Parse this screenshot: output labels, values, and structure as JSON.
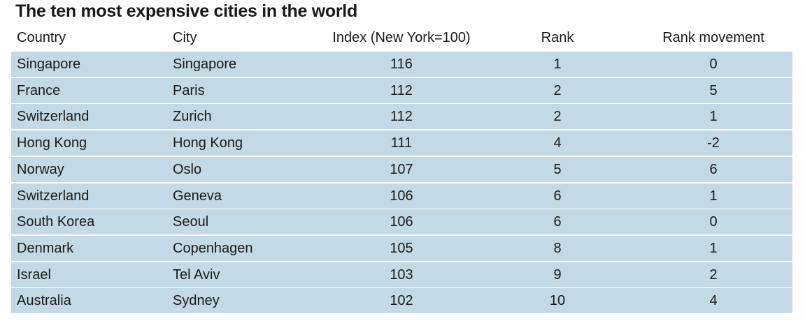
{
  "title": "The ten most expensive cities in the world",
  "table": {
    "columns": [
      "Country",
      "City",
      "Index (New York=100)",
      "Rank",
      "Rank movement"
    ],
    "rows": [
      [
        "Singapore",
        "Singapore",
        116,
        1,
        0
      ],
      [
        "France",
        "Paris",
        112,
        2,
        5
      ],
      [
        "Switzerland",
        "Zurich",
        112,
        2,
        1
      ],
      [
        "Hong Kong",
        "Hong Kong",
        111,
        4,
        -2
      ],
      [
        "Norway",
        "Oslo",
        107,
        5,
        6
      ],
      [
        "Switzerland",
        "Geneva",
        106,
        6,
        1
      ],
      [
        "South Korea",
        "Seoul",
        106,
        6,
        0
      ],
      [
        "Denmark",
        "Copenhagen",
        105,
        8,
        1
      ],
      [
        "Israel",
        "Tel Aviv",
        103,
        9,
        2
      ],
      [
        "Australia",
        "Sydney",
        102,
        10,
        4
      ]
    ]
  }
}
